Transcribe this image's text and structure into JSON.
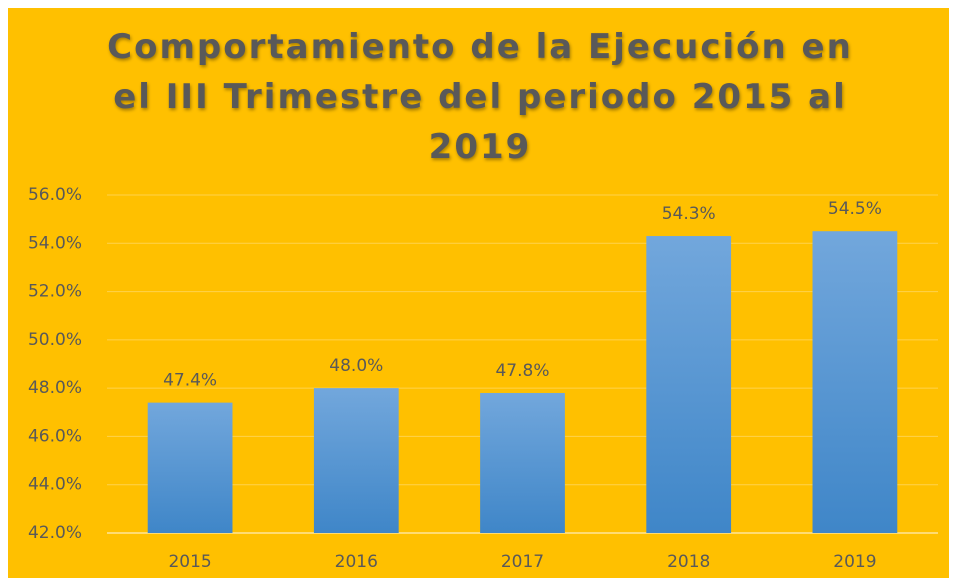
{
  "chart_data": {
    "type": "bar",
    "title": "Comportamiento de la Ejecución en el III Trimestre del periodo 2015 al 2019",
    "categories": [
      "2015",
      "2016",
      "2017",
      "2018",
      "2019"
    ],
    "values": [
      47.4,
      48.0,
      47.8,
      54.3,
      54.5
    ],
    "value_labels": [
      "47.4%",
      "48.0%",
      "47.8%",
      "54.3%",
      "54.5%"
    ],
    "color": "#5b9bd5",
    "ylim": [
      42,
      56
    ],
    "yticks": [
      {
        "value": 42,
        "label": "42.0%"
      },
      {
        "value": 44,
        "label": "44.0%"
      },
      {
        "value": 46,
        "label": "46.0%"
      },
      {
        "value": 48,
        "label": "48.0%"
      },
      {
        "value": 50,
        "label": "50.0%"
      },
      {
        "value": 52,
        "label": "52.0%"
      },
      {
        "value": 54,
        "label": "54.0%"
      },
      {
        "value": 56,
        "label": "56.0%"
      }
    ],
    "grid": true
  }
}
